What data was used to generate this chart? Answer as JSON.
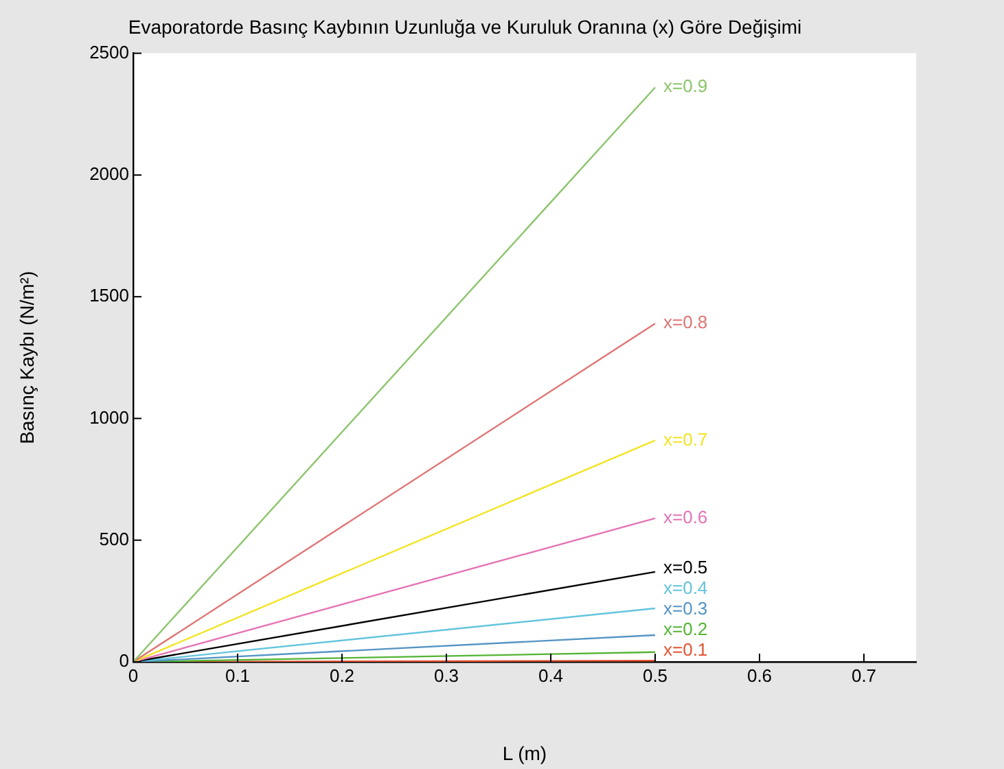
{
  "chart_data": {
    "type": "line",
    "title": "Evaporatorde Basınç Kaybının Uzunluğa ve Kuruluk Oranına (x) Göre Değişimi",
    "xlabel": "L (m)",
    "ylabel": "Basınç Kaybı (N/m²)",
    "x": [
      0,
      0.5
    ],
    "series": [
      {
        "name": "x=0.9",
        "color": "#8cc46a",
        "values": [
          0,
          2360
        ]
      },
      {
        "name": "x=0.8",
        "color": "#e07474",
        "values": [
          0,
          1390
        ]
      },
      {
        "name": "x=0.7",
        "color": "#f2e424",
        "values": [
          0,
          910
        ]
      },
      {
        "name": "x=0.6",
        "color": "#e474b4",
        "values": [
          0,
          590
        ]
      },
      {
        "name": "x=0.5",
        "color": "#000000",
        "values": [
          0,
          370
        ]
      },
      {
        "name": "x=0.4",
        "color": "#64c4dc",
        "values": [
          0,
          220
        ]
      },
      {
        "name": "x=0.3",
        "color": "#5494c4",
        "values": [
          0,
          110
        ]
      },
      {
        "name": "x=0.2",
        "color": "#54b434",
        "values": [
          0,
          40
        ]
      },
      {
        "name": "x=0.1",
        "color": "#e45434",
        "values": [
          0,
          5
        ]
      }
    ],
    "xlim": [
      0,
      0.75
    ],
    "xticks": [
      0,
      0.1,
      0.2,
      0.3,
      0.4,
      0.5,
      0.6,
      0.7
    ],
    "ylim": [
      0,
      2500
    ],
    "yticks": [
      0,
      500,
      1000,
      1500,
      2000,
      2500
    ]
  }
}
